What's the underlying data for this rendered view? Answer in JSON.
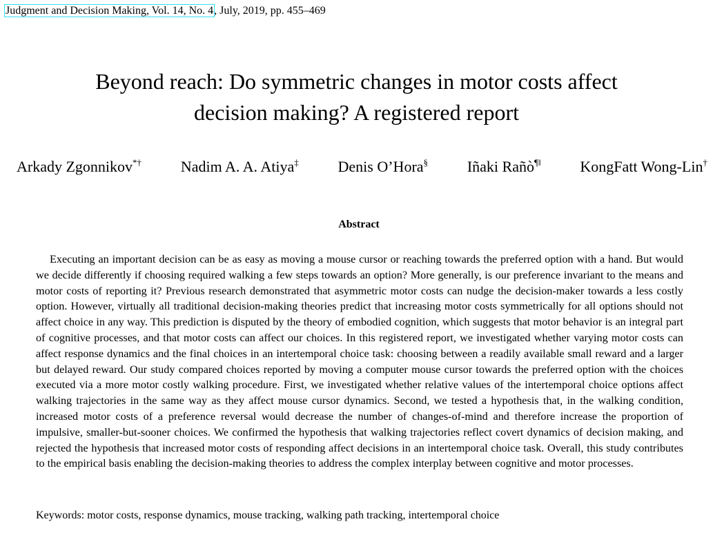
{
  "header": {
    "journal_link": "Judgment and Decision Making, Vol. 14, No. 4",
    "issue_details": ", July, 2019, pp. 455–469"
  },
  "title": {
    "line1": "Beyond reach: Do symmetric changes in motor costs affect",
    "line2": "decision making? A registered report"
  },
  "authors": [
    {
      "name": "Arkady Zgonnikov",
      "marks": "*†"
    },
    {
      "name": "Nadim A. A. Atiya",
      "marks": "‡"
    },
    {
      "name": "Denis O’Hora",
      "marks": "§"
    },
    {
      "name": "Iñaki Rañò",
      "marks": "¶‖"
    },
    {
      "name": "KongFatt Wong-Lin",
      "marks": "†"
    }
  ],
  "abstract": {
    "heading": "Abstract",
    "text": "Executing an important decision can be as easy as moving a mouse cursor or reaching towards the preferred option with a hand. But would we decide differently if choosing required walking a few steps towards an option? More generally, is our preference invariant to the means and motor costs of reporting it? Previous research demonstrated that asymmetric motor costs can nudge the decision-maker towards a less costly option. However, virtually all traditional decision-making theories predict that increasing motor costs symmetrically for all options should not affect choice in any way. This prediction is disputed by the theory of embodied cognition, which suggests that motor behavior is an integral part of cognitive processes, and that motor costs can affect our choices. In this registered report, we investigated whether varying motor costs can affect response dynamics and the final choices in an intertemporal choice task: choosing between a readily available small reward and a larger but delayed reward. Our study compared choices reported by moving a computer mouse cursor towards the preferred option with the choices executed via a more motor costly walking procedure. First, we investigated whether relative values of the intertemporal choice options affect walking trajectories in the same way as they affect mouse cursor dynamics. Second, we tested a hypothesis that, in the walking condition, increased motor costs of a preference reversal would decrease the number of changes-of-mind and therefore increase the proportion of impulsive, smaller-but-sooner choices. We confirmed the hypothesis that walking trajectories reflect covert dynamics of decision making, and rejected the hypothesis that increased motor costs of responding affect decisions in an intertemporal choice task. Overall, this study contributes to the empirical basis enabling the decision-making theories to address the complex interplay between cognitive and motor processes.",
    "keywords": "Keywords: motor costs, response dynamics, mouse tracking, walking path tracking, intertemporal choice"
  },
  "colors": {
    "link_outline": "#2fe0f0",
    "text": "#000000",
    "background": "#ffffff"
  }
}
